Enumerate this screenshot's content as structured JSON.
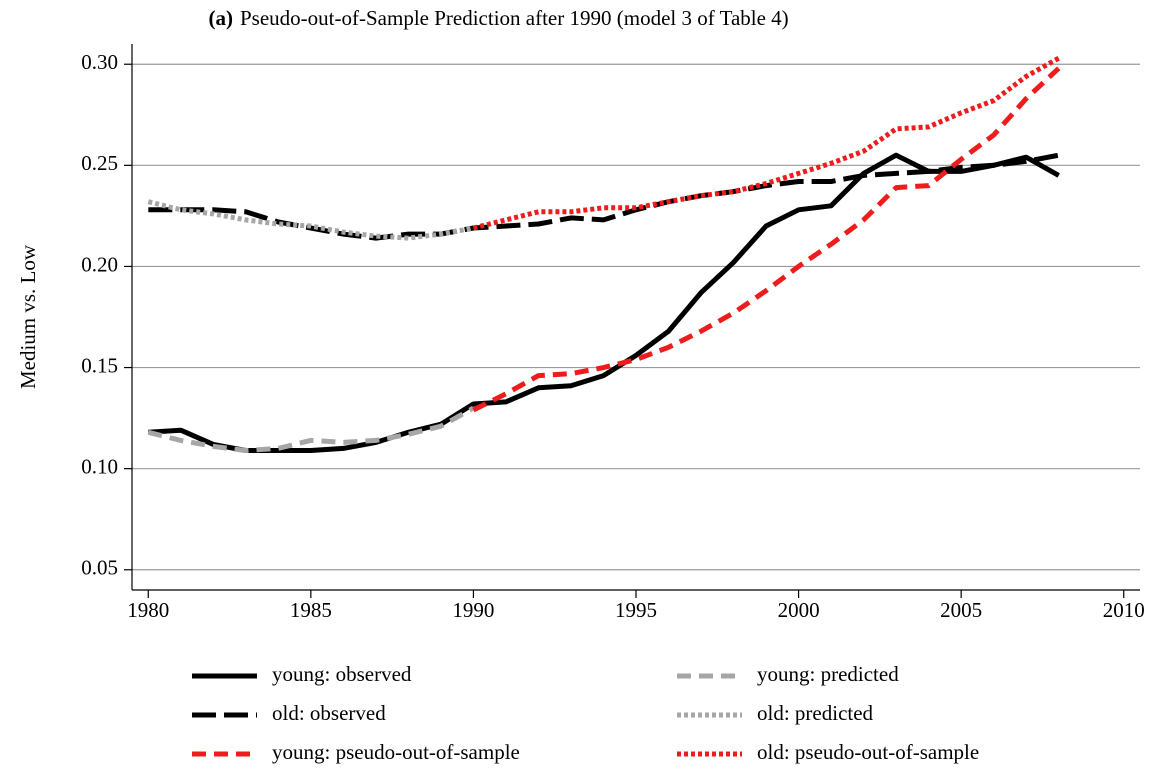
{
  "chart_data": {
    "type": "line",
    "panel": "(a)",
    "title": "Pseudo-out-of-Sample Prediction after 1990 (model 3 of Table 4)",
    "y_label": "Medium vs. Low",
    "x": [
      1980,
      1981,
      1982,
      1983,
      1984,
      1985,
      1986,
      1987,
      1988,
      1989,
      1990,
      1991,
      1992,
      1993,
      1994,
      1995,
      1996,
      1997,
      1998,
      1999,
      2000,
      2001,
      2002,
      2003,
      2004,
      2005,
      2006,
      2007,
      2008
    ],
    "xlim": [
      1979.5,
      2010.5
    ],
    "xticks": [
      1980,
      1985,
      1990,
      1995,
      2000,
      2005,
      2010
    ],
    "ylim": [
      0.04,
      0.31
    ],
    "yticks": [
      0.05,
      {
        "value": 0.1,
        "label": "0.10"
      },
      0.15,
      {
        "value": 0.2,
        "label": "0.20"
      },
      0.25,
      {
        "value": 0.3,
        "label": "0.30"
      }
    ],
    "grid": true,
    "series": [
      {
        "name": "young: observed",
        "color": "#000000",
        "dash": "solid",
        "values": [
          0.118,
          0.119,
          0.112,
          0.109,
          0.109,
          0.109,
          0.11,
          0.113,
          0.118,
          0.122,
          0.132,
          0.133,
          0.14,
          0.141,
          0.146,
          0.156,
          0.168,
          0.187,
          0.202,
          0.22,
          0.228,
          0.23,
          0.246,
          0.255,
          0.247,
          0.247,
          0.25,
          0.254,
          0.245
        ]
      },
      {
        "name": "young: predicted",
        "color": "#a6a6a6",
        "dash": "dashed",
        "values": [
          0.118,
          0.114,
          0.111,
          0.109,
          0.11,
          0.114,
          0.113,
          0.114,
          0.117,
          0.121,
          0.13,
          null,
          null,
          null,
          null,
          null,
          null,
          null,
          null,
          null,
          null,
          null,
          null,
          null,
          null,
          null,
          null,
          null,
          null
        ]
      },
      {
        "name": "old: observed",
        "color": "#000000",
        "dash": "longdash",
        "values": [
          0.228,
          0.228,
          0.228,
          0.227,
          0.222,
          0.219,
          0.216,
          0.214,
          0.216,
          0.216,
          0.219,
          0.22,
          0.221,
          0.224,
          0.223,
          0.228,
          0.232,
          0.235,
          0.237,
          0.24,
          0.242,
          0.242,
          0.245,
          0.246,
          0.247,
          0.249,
          0.25,
          0.252,
          0.255
        ]
      },
      {
        "name": "old: predicted",
        "color": "#a6a6a6",
        "dash": "dotted",
        "values": [
          0.232,
          0.228,
          0.226,
          0.223,
          0.221,
          0.22,
          0.217,
          0.215,
          0.214,
          0.216,
          0.219,
          null,
          null,
          null,
          null,
          null,
          null,
          null,
          null,
          null,
          null,
          null,
          null,
          null,
          null,
          null,
          null,
          null,
          null
        ]
      },
      {
        "name": "young: pseudo-out-of-sample",
        "color": "#ee1c1c",
        "dash": "dashed",
        "values": [
          null,
          null,
          null,
          null,
          null,
          null,
          null,
          null,
          null,
          null,
          0.129,
          0.137,
          0.146,
          0.147,
          0.15,
          0.154,
          0.16,
          0.168,
          0.177,
          0.188,
          0.2,
          0.211,
          0.223,
          0.239,
          0.24,
          0.253,
          0.265,
          0.283,
          0.298
        ]
      },
      {
        "name": "old: pseudo-out-of-sample",
        "color": "#ee1c1c",
        "dash": "dotted",
        "values": [
          null,
          null,
          null,
          null,
          null,
          null,
          null,
          null,
          null,
          null,
          0.219,
          0.223,
          0.227,
          0.227,
          0.229,
          0.229,
          0.232,
          0.235,
          0.237,
          0.241,
          0.246,
          0.251,
          0.257,
          0.268,
          0.269,
          0.276,
          0.282,
          0.294,
          0.303
        ]
      }
    ]
  }
}
